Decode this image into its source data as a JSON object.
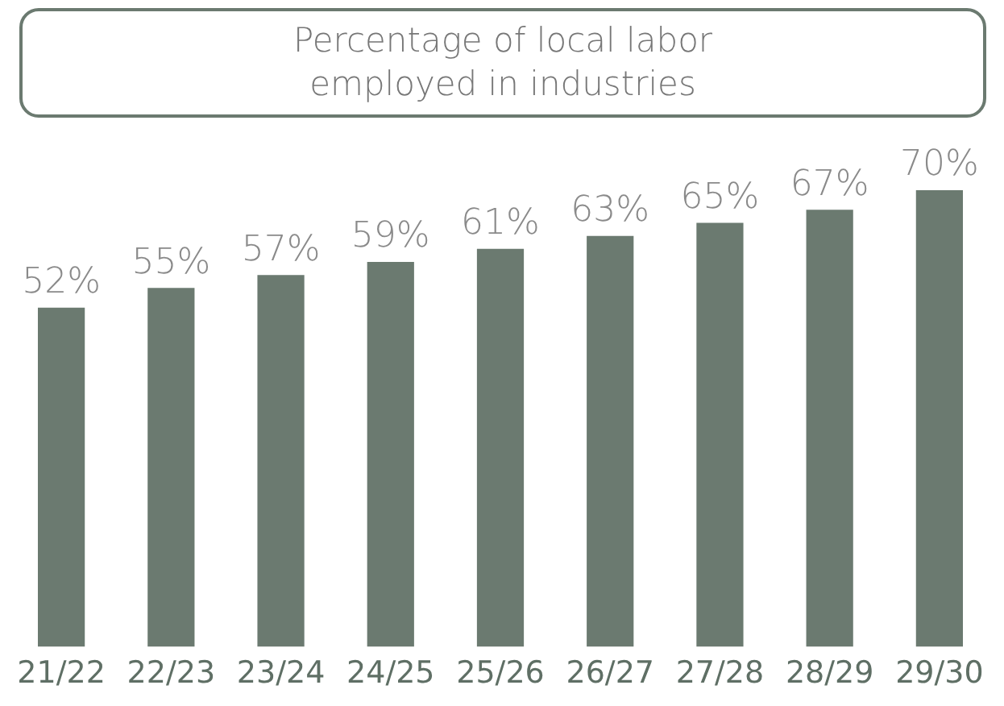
{
  "chart_data": {
    "type": "bar",
    "title": "Percentage of local labor employed in industries",
    "categories": [
      "21/22",
      "22/23",
      "23/24",
      "24/25",
      "25/26",
      "26/27",
      "27/28",
      "28/29",
      "29/30"
    ],
    "values": [
      52,
      55,
      57,
      59,
      61,
      63,
      65,
      67,
      70
    ],
    "value_labels": [
      "52%",
      "55%",
      "57%",
      "59%",
      "61%",
      "63%",
      "65%",
      "67%",
      "70%"
    ],
    "color": "#6b7a70",
    "grid": false,
    "legend": false,
    "tick_labels": "x"
  }
}
